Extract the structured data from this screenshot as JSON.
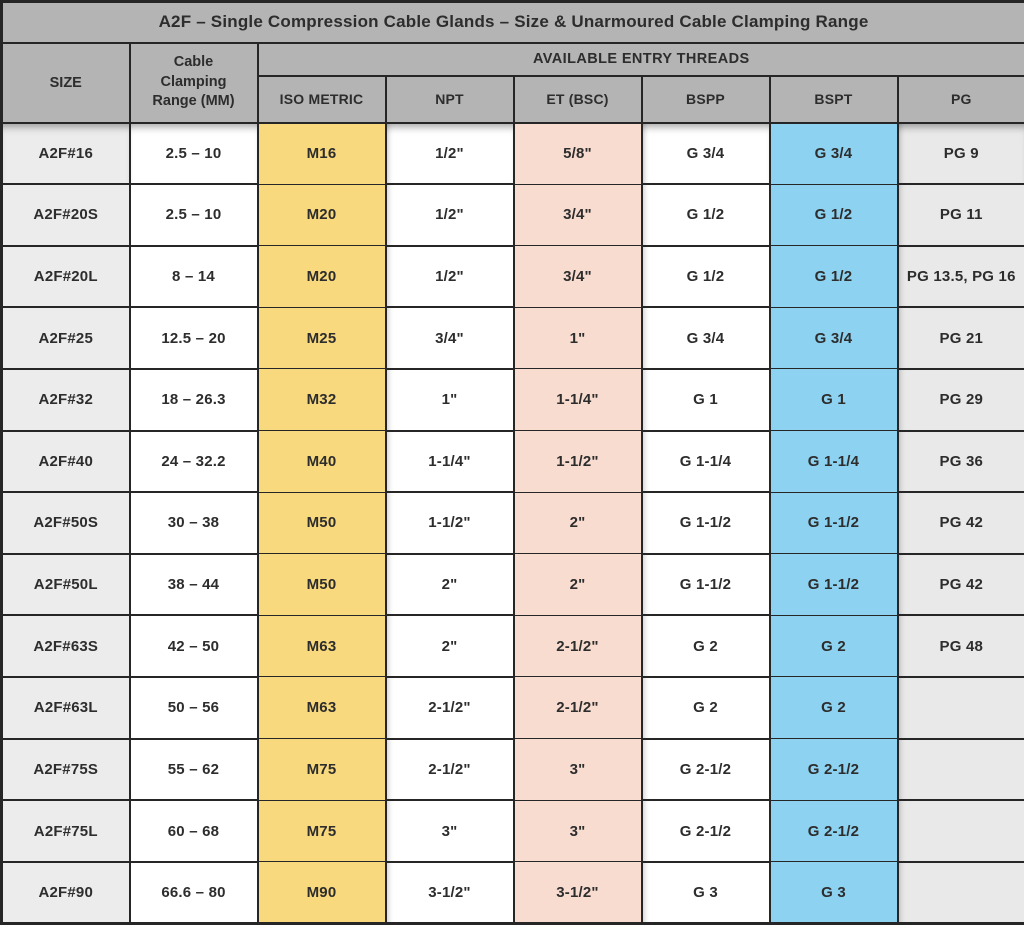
{
  "title": "A2F – Single Compression Cable Glands – Size & Unarmoured Cable Clamping Range",
  "colors": {
    "border": "#262626",
    "text": "#2d2d2d",
    "header-bg": "#b4b4b4",
    "size-col-bg": "#ececec",
    "iso-col-bg": "#f9d97d",
    "et-col-bg": "#f8dcd0",
    "bspt-col-bg": "#8dd2f0",
    "pg-col-bg": "#e9e9e9",
    "white-cell": "#ffffff"
  },
  "chart_data": {
    "type": "table",
    "title": "A2F – Single Compression Cable Glands – Size & Unarmoured Cable Clamping Range",
    "column_group_label": "AVAILABLE ENTRY THREADS",
    "columns": {
      "size": "SIZE",
      "range": "Cable Clamping Range (MM)",
      "iso": "ISO METRIC",
      "npt": "NPT",
      "et": "ET (BSC)",
      "bspp": "BSPP",
      "bspt": "BSPT",
      "pg": "PG"
    },
    "rows": [
      {
        "size": "A2F#16",
        "range": "2.5 – 10",
        "iso": "M16",
        "npt": "1/2\"",
        "et": "5/8\"",
        "bspp": "G 3/4",
        "bspt": "G 3/4",
        "pg": "PG 9"
      },
      {
        "size": "A2F#20S",
        "range": "2.5 – 10",
        "iso": "M20",
        "npt": "1/2\"",
        "et": "3/4\"",
        "bspp": "G 1/2",
        "bspt": "G 1/2",
        "pg": "PG 11"
      },
      {
        "size": "A2F#20L",
        "range": "8 – 14",
        "iso": "M20",
        "npt": "1/2\"",
        "et": "3/4\"",
        "bspp": "G 1/2",
        "bspt": "G 1/2",
        "pg": "PG 13.5, PG 16"
      },
      {
        "size": "A2F#25",
        "range": "12.5 – 20",
        "iso": "M25",
        "npt": "3/4\"",
        "et": "1\"",
        "bspp": "G 3/4",
        "bspt": "G 3/4",
        "pg": "PG 21"
      },
      {
        "size": "A2F#32",
        "range": "18 – 26.3",
        "iso": "M32",
        "npt": "1\"",
        "et": "1-1/4\"",
        "bspp": "G 1",
        "bspt": "G 1",
        "pg": "PG 29"
      },
      {
        "size": "A2F#40",
        "range": "24 – 32.2",
        "iso": "M40",
        "npt": "1-1/4\"",
        "et": "1-1/2\"",
        "bspp": "G 1-1/4",
        "bspt": "G 1-1/4",
        "pg": "PG 36"
      },
      {
        "size": "A2F#50S",
        "range": "30 – 38",
        "iso": "M50",
        "npt": "1-1/2\"",
        "et": "2\"",
        "bspp": "G 1-1/2",
        "bspt": "G 1-1/2",
        "pg": "PG 42"
      },
      {
        "size": "A2F#50L",
        "range": "38 – 44",
        "iso": "M50",
        "npt": "2\"",
        "et": "2\"",
        "bspp": "G 1-1/2",
        "bspt": "G 1-1/2",
        "pg": "PG 42"
      },
      {
        "size": "A2F#63S",
        "range": "42 – 50",
        "iso": "M63",
        "npt": "2\"",
        "et": "2-1/2\"",
        "bspp": "G 2",
        "bspt": "G 2",
        "pg": "PG 48"
      },
      {
        "size": "A2F#63L",
        "range": "50 – 56",
        "iso": "M63",
        "npt": "2-1/2\"",
        "et": "2-1/2\"",
        "bspp": "G 2",
        "bspt": "G 2",
        "pg": ""
      },
      {
        "size": "A2F#75S",
        "range": "55 – 62",
        "iso": "M75",
        "npt": "2-1/2\"",
        "et": "3\"",
        "bspp": "G 2-1/2",
        "bspt": "G 2-1/2",
        "pg": ""
      },
      {
        "size": "A2F#75L",
        "range": "60 – 68",
        "iso": "M75",
        "npt": "3\"",
        "et": "3\"",
        "bspp": "G 2-1/2",
        "bspt": "G 2-1/2",
        "pg": ""
      },
      {
        "size": "A2F#90",
        "range": "66.6 – 80",
        "iso": "M90",
        "npt": "3-1/2\"",
        "et": "3-1/2\"",
        "bspp": "G 3",
        "bspt": "G 3",
        "pg": ""
      }
    ]
  }
}
